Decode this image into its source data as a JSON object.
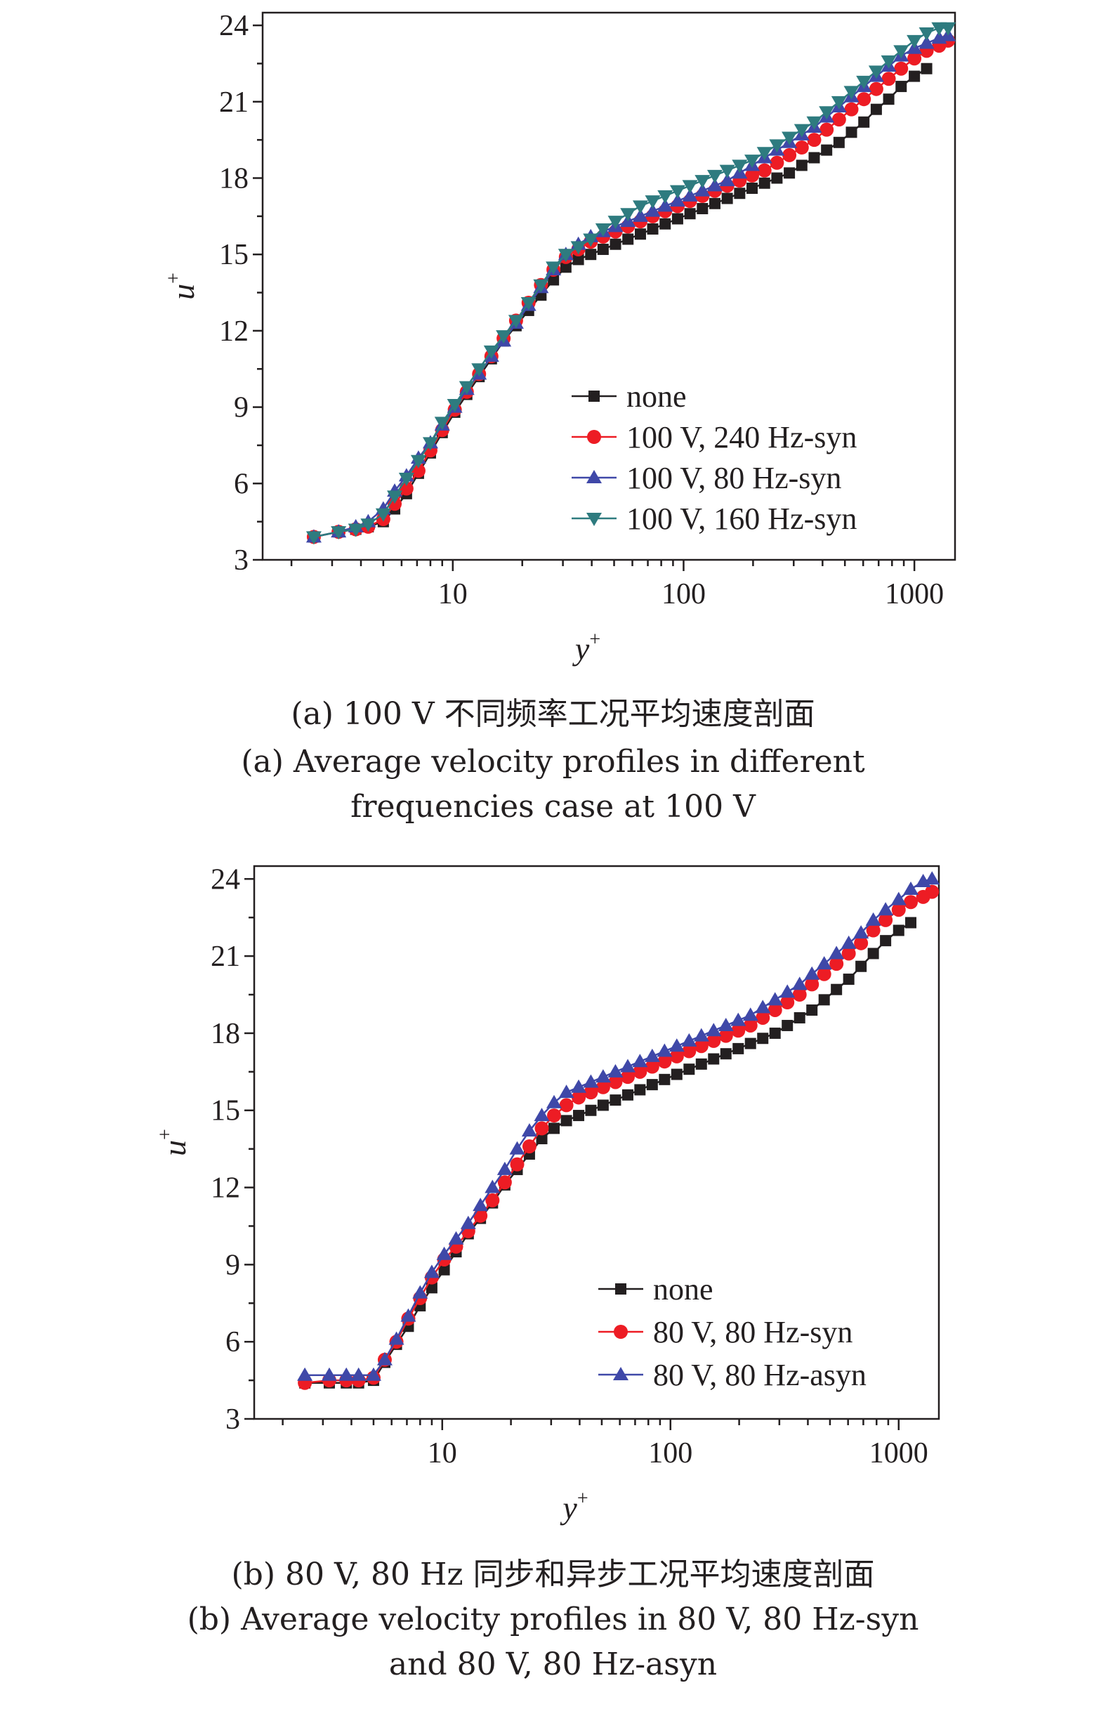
{
  "figures": [
    {
      "caption_cn": "(a) 100 V 不同频率工况平均速度剖面",
      "caption_en_line1": "(a) Average velocity profiles in different",
      "caption_en_line2": "frequencies case at 100 V"
    },
    {
      "caption_cn": "(b) 80 V, 80 Hz 同步和异步工况平均速度剖面",
      "caption_en_line1": "(b) Average velocity profiles in 80 V, 80 Hz-syn",
      "caption_en_line2": "and 80 V, 80 Hz-asyn"
    }
  ],
  "chart_data": [
    {
      "type": "line",
      "xlabel": "y",
      "xlabel_sup": "+",
      "ylabel": "u",
      "ylabel_sup": "+",
      "xscale": "log",
      "xlim": [
        1.5,
        1500
      ],
      "ylim": [
        3,
        24.5
      ],
      "xticks": [
        10,
        100,
        1000
      ],
      "xtick_labels": [
        "10",
        "100",
        "1000"
      ],
      "yticks": [
        3,
        6,
        9,
        12,
        15,
        18,
        21,
        24
      ],
      "ytick_labels": [
        "3",
        "6",
        "9",
        "12",
        "15",
        "18",
        "21",
        "24"
      ],
      "legend_position": "lower-right",
      "x": [
        2.5,
        3.2,
        3.8,
        4.3,
        5.0,
        5.6,
        6.3,
        7.1,
        8.0,
        9.0,
        10.2,
        11.5,
        13.0,
        14.7,
        16.6,
        18.8,
        21.3,
        24.1,
        27.3,
        30.9,
        35.0,
        39.6,
        44.8,
        50.7,
        57.4,
        65.0,
        73.5,
        83.2,
        94.2,
        106.6,
        120.7,
        136.6,
        154.6,
        175.0,
        198.1,
        224.2,
        253.8,
        287.3,
        325.2,
        368.1,
        416.7,
        471.6,
        533.8,
        604.2,
        683.9,
        774.1,
        876.2,
        1000.0,
        1130.0,
        1280.0,
        1400.0
      ],
      "series": [
        {
          "name": "none",
          "marker": "square",
          "color": "#231f20",
          "values": [
            3.9,
            4.1,
            4.2,
            4.3,
            4.5,
            5.0,
            5.6,
            6.4,
            7.2,
            8.0,
            8.8,
            9.5,
            10.2,
            10.9,
            11.6,
            12.2,
            12.8,
            13.4,
            14.0,
            14.5,
            14.8,
            15.0,
            15.2,
            15.4,
            15.6,
            15.8,
            16.0,
            16.2,
            16.4,
            16.6,
            16.8,
            17.0,
            17.2,
            17.4,
            17.6,
            17.8,
            18.0,
            18.2,
            18.5,
            18.8,
            19.1,
            19.4,
            19.8,
            20.2,
            20.7,
            21.1,
            21.6,
            22.0,
            22.3,
            null,
            null
          ]
        },
        {
          "name": "100 V, 240 Hz-syn",
          "marker": "circle",
          "color": "#ed1c24",
          "values": [
            3.9,
            4.1,
            4.2,
            4.3,
            4.6,
            5.2,
            5.8,
            6.5,
            7.3,
            8.1,
            8.9,
            9.6,
            10.3,
            11.0,
            11.7,
            12.4,
            13.1,
            13.8,
            14.4,
            14.9,
            15.2,
            15.5,
            15.7,
            15.9,
            16.1,
            16.3,
            16.5,
            16.7,
            16.9,
            17.1,
            17.3,
            17.5,
            17.7,
            17.9,
            18.1,
            18.3,
            18.6,
            18.9,
            19.2,
            19.5,
            19.9,
            20.3,
            20.7,
            21.1,
            21.5,
            21.9,
            22.3,
            22.7,
            23.0,
            23.2,
            23.4
          ]
        },
        {
          "name": "100 V, 80 Hz-syn",
          "marker": "triangle-up",
          "color": "#3f48a8",
          "values": [
            3.9,
            4.1,
            4.3,
            4.5,
            5.0,
            5.7,
            6.3,
            7.0,
            7.6,
            8.3,
            9.0,
            9.7,
            10.3,
            11.0,
            11.6,
            12.3,
            13.0,
            13.7,
            14.4,
            15.0,
            15.4,
            15.7,
            15.9,
            16.1,
            16.3,
            16.5,
            16.7,
            16.9,
            17.1,
            17.3,
            17.5,
            17.7,
            17.9,
            18.2,
            18.5,
            18.8,
            19.1,
            19.4,
            19.7,
            20.0,
            20.4,
            20.8,
            21.2,
            21.6,
            22.0,
            22.4,
            22.8,
            23.1,
            23.3,
            23.5,
            23.6
          ]
        },
        {
          "name": "100 V, 160 Hz-syn",
          "marker": "triangle-down",
          "color": "#2e7b7f",
          "values": [
            3.9,
            4.1,
            4.2,
            4.4,
            4.8,
            5.5,
            6.2,
            6.9,
            7.6,
            8.4,
            9.1,
            9.8,
            10.5,
            11.2,
            11.8,
            12.4,
            13.1,
            13.8,
            14.5,
            15.0,
            15.3,
            15.6,
            16.0,
            16.3,
            16.6,
            16.9,
            17.1,
            17.3,
            17.5,
            17.7,
            17.9,
            18.1,
            18.3,
            18.5,
            18.7,
            19.0,
            19.3,
            19.6,
            19.9,
            20.2,
            20.6,
            21.0,
            21.4,
            21.8,
            22.2,
            22.6,
            23.0,
            23.4,
            23.7,
            23.9,
            23.9
          ]
        }
      ]
    },
    {
      "type": "line",
      "xlabel": "y",
      "xlabel_sup": "+",
      "ylabel": "u",
      "ylabel_sup": "+",
      "xscale": "log",
      "xlim": [
        1.5,
        1500
      ],
      "ylim": [
        3,
        24.5
      ],
      "xticks": [
        10,
        100,
        1000
      ],
      "xtick_labels": [
        "10",
        "100",
        "1000"
      ],
      "yticks": [
        3,
        6,
        9,
        12,
        15,
        18,
        21,
        24
      ],
      "ytick_labels": [
        "3",
        "6",
        "9",
        "12",
        "15",
        "18",
        "21",
        "24"
      ],
      "legend_position": "lower-right",
      "x": [
        2.5,
        3.2,
        3.8,
        4.3,
        5.0,
        5.6,
        6.3,
        7.1,
        8.0,
        9.0,
        10.2,
        11.5,
        13.0,
        14.7,
        16.6,
        18.8,
        21.3,
        24.1,
        27.3,
        30.9,
        35.0,
        39.6,
        44.8,
        50.7,
        57.4,
        65.0,
        73.5,
        83.2,
        94.2,
        106.6,
        120.7,
        136.6,
        154.6,
        175.0,
        198.1,
        224.2,
        253.8,
        287.3,
        325.2,
        368.1,
        416.7,
        471.6,
        533.8,
        604.2,
        683.9,
        774.1,
        876.2,
        1000.0,
        1130.0,
        1280.0,
        1400.0
      ],
      "series": [
        {
          "name": "none",
          "marker": "square",
          "color": "#231f20",
          "values": [
            4.4,
            4.4,
            4.4,
            4.4,
            4.5,
            5.2,
            5.9,
            6.6,
            7.4,
            8.1,
            8.8,
            9.5,
            10.2,
            10.8,
            11.4,
            12.1,
            12.7,
            13.3,
            13.9,
            14.3,
            14.6,
            14.8,
            15.0,
            15.2,
            15.4,
            15.6,
            15.8,
            16.0,
            16.2,
            16.4,
            16.6,
            16.8,
            17.0,
            17.2,
            17.4,
            17.6,
            17.8,
            18.0,
            18.3,
            18.6,
            18.9,
            19.3,
            19.7,
            20.1,
            20.6,
            21.1,
            21.6,
            22.0,
            22.3,
            null,
            null
          ]
        },
        {
          "name": "80 V, 80 Hz-syn",
          "marker": "circle",
          "color": "#ed1c24",
          "values": [
            4.4,
            4.5,
            4.5,
            4.5,
            4.6,
            5.3,
            6.0,
            6.9,
            7.7,
            8.5,
            9.2,
            9.7,
            10.3,
            10.9,
            11.5,
            12.2,
            12.9,
            13.6,
            14.3,
            14.8,
            15.2,
            15.5,
            15.7,
            15.9,
            16.1,
            16.3,
            16.5,
            16.7,
            16.9,
            17.1,
            17.3,
            17.5,
            17.7,
            17.9,
            18.1,
            18.3,
            18.6,
            18.9,
            19.2,
            19.5,
            19.9,
            20.3,
            20.7,
            21.1,
            21.5,
            22.0,
            22.4,
            22.8,
            23.1,
            23.3,
            23.5
          ]
        },
        {
          "name": "80 V, 80 Hz-asyn",
          "marker": "triangle-up",
          "color": "#3f48a8",
          "values": [
            4.7,
            4.7,
            4.7,
            4.7,
            4.7,
            5.3,
            6.1,
            7.0,
            7.9,
            8.7,
            9.4,
            10.0,
            10.6,
            11.3,
            12.0,
            12.7,
            13.5,
            14.2,
            14.8,
            15.3,
            15.7,
            15.9,
            16.1,
            16.3,
            16.5,
            16.7,
            16.9,
            17.1,
            17.3,
            17.5,
            17.7,
            17.9,
            18.1,
            18.3,
            18.5,
            18.7,
            19.0,
            19.3,
            19.6,
            19.9,
            20.3,
            20.7,
            21.1,
            21.5,
            21.9,
            22.4,
            22.8,
            23.2,
            23.6,
            23.9,
            24.0
          ]
        }
      ]
    }
  ]
}
